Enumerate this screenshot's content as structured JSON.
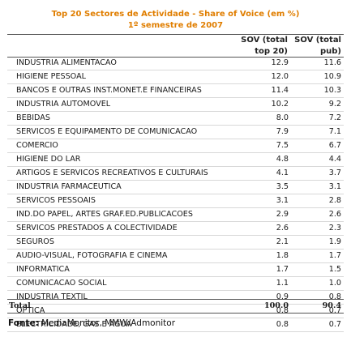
{
  "title": {
    "line1": "Top 20 Sectores de Actividade - Share of Voice (em %)",
    "line2": "1º semestre de 2007"
  },
  "columns": {
    "sov_top20": [
      "SOV (total",
      "top 20)"
    ],
    "sov_pub": [
      "SOV (total",
      "pub)"
    ]
  },
  "rows": [
    {
      "sector": "INDUSTRIA ALIMENTACAO",
      "sov_top20": "12.9",
      "sov_pub": "11.6"
    },
    {
      "sector": "HIGIENE PESSOAL",
      "sov_top20": "12.0",
      "sov_pub": "10.9"
    },
    {
      "sector": "BANCOS E OUTRAS INST.MONET.E FINANCEIRAS",
      "sov_top20": "11.4",
      "sov_pub": "10.3"
    },
    {
      "sector": "INDUSTRIA AUTOMOVEL",
      "sov_top20": "10.2",
      "sov_pub": "9.2"
    },
    {
      "sector": "BEBIDAS",
      "sov_top20": "8.0",
      "sov_pub": "7.2"
    },
    {
      "sector": "SERVICOS E EQUIPAMENTO DE COMUNICACAO",
      "sov_top20": "7.9",
      "sov_pub": "7.1"
    },
    {
      "sector": "COMERCIO",
      "sov_top20": "7.5",
      "sov_pub": "6.7"
    },
    {
      "sector": "HIGIENE DO LAR",
      "sov_top20": "4.8",
      "sov_pub": "4.4"
    },
    {
      "sector": "ARTIGOS E SERVICOS RECREATIVOS E CULTURAIS",
      "sov_top20": "4.1",
      "sov_pub": "3.7"
    },
    {
      "sector": "INDUSTRIA FARMACEUTICA",
      "sov_top20": "3.5",
      "sov_pub": "3.1"
    },
    {
      "sector": "SERVICOS PESSOAIS",
      "sov_top20": "3.1",
      "sov_pub": "2.8"
    },
    {
      "sector": "IND.DO PAPEL, ARTES GRAF.ED.PUBLICACOES",
      "sov_top20": "2.9",
      "sov_pub": "2.6"
    },
    {
      "sector": "SERVICOS PRESTADOS A COLECTIVIDADE",
      "sov_top20": "2.6",
      "sov_pub": "2.3"
    },
    {
      "sector": "SEGUROS",
      "sov_top20": "2.1",
      "sov_pub": "1.9"
    },
    {
      "sector": "AUDIO-VISUAL, FOTOGRAFIA E CINEMA",
      "sov_top20": "1.8",
      "sov_pub": "1.7"
    },
    {
      "sector": "INFORMATICA",
      "sov_top20": "1.7",
      "sov_pub": "1.5"
    },
    {
      "sector": "COMUNICACAO SOCIAL",
      "sov_top20": "1.1",
      "sov_pub": "1.0"
    },
    {
      "sector": "INDUSTRIA TEXTIL",
      "sov_top20": "0.9",
      "sov_pub": "0.8"
    },
    {
      "sector": "OPTICA",
      "sov_top20": "0.8",
      "sov_pub": "0.7"
    },
    {
      "sector": "ELECTRICIDADE, GAS E AGUA",
      "sov_top20": "0.8",
      "sov_pub": "0.7"
    }
  ],
  "total": {
    "label": "Total",
    "sov_top20": "100.0",
    "sov_pub": "90.4"
  },
  "source": {
    "label": "Fonte:",
    "text": " MediaMonitor, MMW/Admonitor"
  },
  "colors": {
    "title": "#e07e00",
    "rule": "#555555",
    "row_divider": "#d8d8d8"
  }
}
